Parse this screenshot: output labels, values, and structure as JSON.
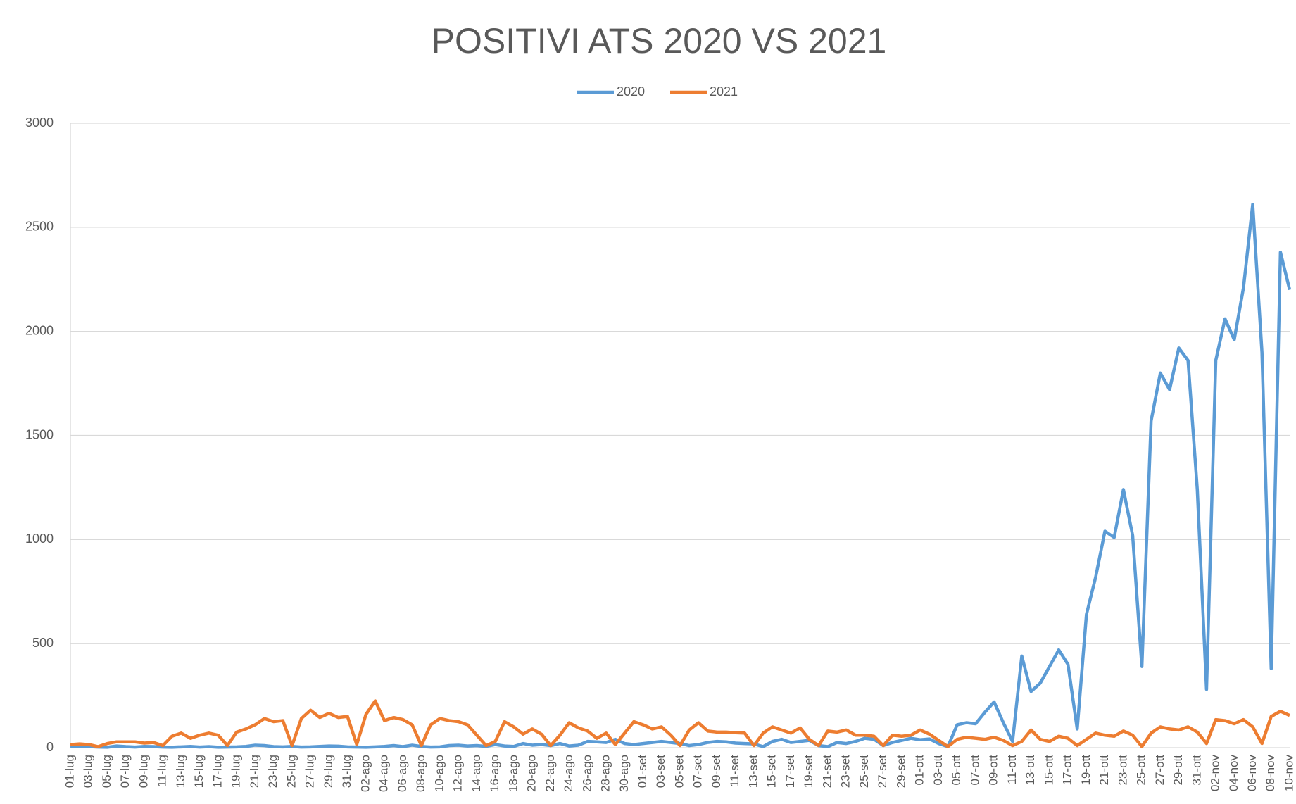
{
  "chart_data": {
    "type": "line",
    "title": "POSITIVI ATS 2020 VS 2021",
    "categories": [
      "01-lug",
      null,
      "03-lug",
      null,
      "05-lug",
      null,
      "07-lug",
      null,
      "09-lug",
      null,
      "11-lug",
      null,
      "13-lug",
      null,
      "15-lug",
      null,
      "17-lug",
      null,
      "19-lug",
      null,
      "21-lug",
      null,
      "23-lug",
      null,
      "25-lug",
      null,
      "27-lug",
      null,
      "29-lug",
      null,
      "31-lug",
      null,
      "02-ago",
      null,
      "04-ago",
      null,
      "06-ago",
      null,
      "08-ago",
      null,
      "10-ago",
      null,
      "12-ago",
      null,
      "14-ago",
      null,
      "16-ago",
      null,
      "18-ago",
      null,
      "20-ago",
      null,
      "22-ago",
      null,
      "24-ago",
      null,
      "26-ago",
      null,
      "28-ago",
      null,
      "30-ago",
      null,
      "01-set",
      null,
      "03-set",
      null,
      "05-set",
      null,
      "07-set",
      null,
      "09-set",
      null,
      "11-set",
      null,
      "13-set",
      null,
      "15-set",
      null,
      "17-set",
      null,
      "19-set",
      null,
      "21-set",
      null,
      "23-set",
      null,
      "25-set",
      null,
      "27-set",
      null,
      "29-set",
      null,
      "01-ott",
      null,
      "03-ott",
      null,
      "05-ott",
      null,
      "07-ott",
      null,
      "09-ott",
      null,
      "11-ott",
      null,
      "13-ott",
      null,
      "15-ott",
      null,
      "17-ott",
      null,
      "19-ott",
      null,
      "21-ott",
      null,
      "23-ott",
      null,
      "25-ott",
      null,
      "27-ott",
      null,
      "29-ott",
      null,
      "31-ott",
      null,
      "02-nov",
      null,
      "04-nov",
      null,
      "06-nov",
      null,
      "08-nov",
      null,
      "10-nov"
    ],
    "series": [
      {
        "name": "2020",
        "color": "#5b9bd5",
        "values": [
          5,
          8,
          5,
          3,
          2,
          8,
          5,
          3,
          6,
          5,
          3,
          2,
          4,
          6,
          3,
          5,
          2,
          3,
          4,
          6,
          12,
          10,
          5,
          4,
          6,
          3,
          4,
          6,
          8,
          7,
          4,
          3,
          2,
          4,
          6,
          10,
          5,
          12,
          6,
          3,
          4,
          10,
          12,
          8,
          10,
          6,
          15,
          8,
          6,
          20,
          12,
          15,
          10,
          20,
          8,
          12,
          30,
          28,
          25,
          40,
          20,
          15,
          20,
          25,
          30,
          25,
          20,
          10,
          15,
          25,
          30,
          28,
          22,
          20,
          18,
          5,
          30,
          40,
          25,
          30,
          35,
          10,
          5,
          25,
          20,
          30,
          45,
          40,
          10,
          25,
          35,
          45,
          38,
          42,
          20,
          5,
          110,
          120,
          115,
          170,
          220,
          120,
          30,
          440,
          270,
          310,
          390,
          470,
          400,
          90,
          640,
          820,
          1040,
          1010,
          1240,
          1020,
          390,
          1570,
          1800,
          1720,
          1920,
          1860,
          1240,
          280,
          1860,
          2060,
          1960,
          2210,
          2610,
          1900,
          380,
          2380,
          2200
        ]
      },
      {
        "name": "2021",
        "color": "#ed7d31",
        "values": [
          15,
          18,
          15,
          5,
          20,
          28,
          28,
          28,
          22,
          25,
          10,
          55,
          70,
          45,
          60,
          70,
          60,
          10,
          75,
          90,
          110,
          140,
          125,
          130,
          10,
          140,
          180,
          145,
          165,
          145,
          150,
          15,
          160,
          225,
          130,
          145,
          135,
          110,
          10,
          110,
          140,
          130,
          125,
          110,
          60,
          10,
          30,
          125,
          100,
          65,
          90,
          65,
          10,
          60,
          120,
          95,
          80,
          45,
          70,
          15,
          70,
          125,
          110,
          90,
          100,
          60,
          10,
          85,
          120,
          80,
          75,
          75,
          72,
          70,
          10,
          70,
          100,
          85,
          70,
          95,
          40,
          10,
          80,
          75,
          85,
          60,
          60,
          55,
          10,
          60,
          55,
          60,
          85,
          65,
          35,
          5,
          40,
          50,
          45,
          40,
          50,
          35,
          10,
          30,
          85,
          40,
          30,
          55,
          45,
          10,
          40,
          70,
          60,
          55,
          80,
          60,
          5,
          70,
          100,
          90,
          85,
          100,
          75,
          20,
          135,
          130,
          115,
          135,
          100,
          20,
          150,
          175,
          155
        ]
      }
    ],
    "ylim": [
      0,
      3000
    ],
    "yticks": [
      0,
      500,
      1000,
      1500,
      2000,
      2500,
      3000
    ],
    "grid": true,
    "legend": "top"
  }
}
